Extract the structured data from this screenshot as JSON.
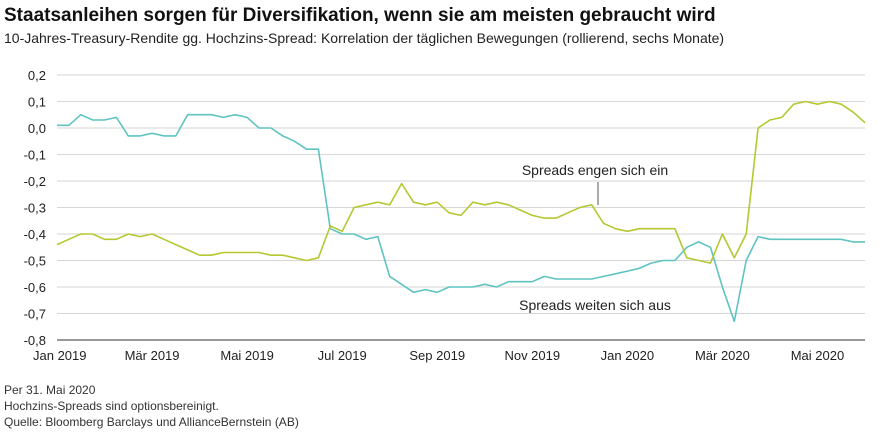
{
  "chart_data": {
    "type": "line",
    "title": "Staatsanleihen sorgen für Diversifikation, wenn sie am meisten gebraucht wird",
    "subtitle": "10-Jahres-Treasury-Rendite gg. Hochzins-Spread: Korrelation der täglichen Bewegungen (rollierend, sechs Monate)",
    "categories": [
      "Jan 2019",
      null,
      null,
      null,
      null,
      null,
      null,
      null,
      "Mär 2019",
      null,
      null,
      null,
      null,
      null,
      null,
      null,
      "Mai 2019",
      null,
      null,
      null,
      null,
      null,
      null,
      null,
      "Jul 2019",
      null,
      null,
      null,
      null,
      null,
      null,
      null,
      "Sep 2019",
      null,
      null,
      null,
      null,
      null,
      null,
      null,
      "Nov 2019",
      null,
      null,
      null,
      null,
      null,
      null,
      null,
      "Jan 2020",
      null,
      null,
      null,
      null,
      null,
      null,
      null,
      "Mär 2020",
      null,
      null,
      null,
      null,
      null,
      null,
      null,
      "Mai 2020",
      null,
      null,
      null,
      null
    ],
    "series": [
      {
        "color": "#5fc4c0",
        "values": [
          0.01,
          0.01,
          0.05,
          0.03,
          0.03,
          0.04,
          -0.03,
          -0.03,
          -0.02,
          -0.03,
          -0.03,
          0.05,
          0.05,
          0.05,
          0.04,
          0.05,
          0.04,
          0.0,
          0.0,
          -0.03,
          -0.05,
          -0.08,
          -0.08,
          -0.38,
          -0.4,
          -0.4,
          -0.42,
          -0.41,
          -0.56,
          -0.59,
          -0.62,
          -0.61,
          -0.62,
          -0.6,
          -0.6,
          -0.6,
          -0.59,
          -0.6,
          -0.58,
          -0.58,
          -0.58,
          -0.56,
          -0.57,
          -0.57,
          -0.57,
          -0.57,
          -0.56,
          -0.55,
          -0.54,
          -0.53,
          -0.51,
          -0.5,
          -0.5,
          -0.45,
          -0.43,
          -0.45,
          -0.6,
          -0.73,
          -0.5,
          -0.41,
          -0.42,
          -0.42,
          -0.42,
          -0.42,
          -0.42,
          -0.42,
          -0.42,
          -0.43,
          -0.43
        ]
      },
      {
        "color": "#b5c832",
        "values": [
          -0.44,
          -0.42,
          -0.4,
          -0.4,
          -0.42,
          -0.42,
          -0.4,
          -0.41,
          -0.4,
          -0.42,
          -0.44,
          -0.46,
          -0.48,
          -0.48,
          -0.47,
          -0.47,
          -0.47,
          -0.47,
          -0.48,
          -0.48,
          -0.49,
          -0.5,
          -0.49,
          -0.37,
          -0.39,
          -0.3,
          -0.29,
          -0.28,
          -0.29,
          -0.21,
          -0.28,
          -0.29,
          -0.28,
          -0.32,
          -0.33,
          -0.28,
          -0.29,
          -0.28,
          -0.29,
          -0.31,
          -0.33,
          -0.34,
          -0.34,
          -0.32,
          -0.3,
          -0.29,
          -0.36,
          -0.38,
          -0.39,
          -0.38,
          -0.38,
          -0.38,
          -0.38,
          -0.49,
          -0.5,
          -0.51,
          -0.4,
          -0.49,
          -0.4,
          0.0,
          0.03,
          0.04,
          0.09,
          0.1,
          0.09,
          0.1,
          0.09,
          0.06,
          0.02
        ]
      }
    ],
    "ylim": [
      -0.8,
      0.2
    ],
    "yticks": [
      {
        "value": 0.2,
        "label": "0,2"
      },
      {
        "value": 0.1,
        "label": "0,1"
      },
      {
        "value": 0,
        "label": "0,0"
      },
      {
        "value": -0.1,
        "label": "-0,1"
      },
      {
        "value": -0.2,
        "label": "-0,2"
      },
      {
        "value": -0.3,
        "label": "-0,3"
      },
      {
        "value": -0.4,
        "label": "-0,4"
      },
      {
        "value": -0.5,
        "label": "-0,5"
      },
      {
        "value": -0.6,
        "label": "-0,6"
      },
      {
        "value": -0.7,
        "label": "-0,7"
      },
      {
        "value": -0.8,
        "label": "-0,8"
      }
    ],
    "grid": true,
    "annotations": [
      "Spreads engen sich ein",
      "Spreads weiten sich aus"
    ],
    "notes": [
      "Per 31. Mai 2020",
      "Hochzins-Spreads sind optionsbereinigt.",
      "Quelle: Bloomberg Barclays und AllianceBernstein (AB)"
    ]
  }
}
